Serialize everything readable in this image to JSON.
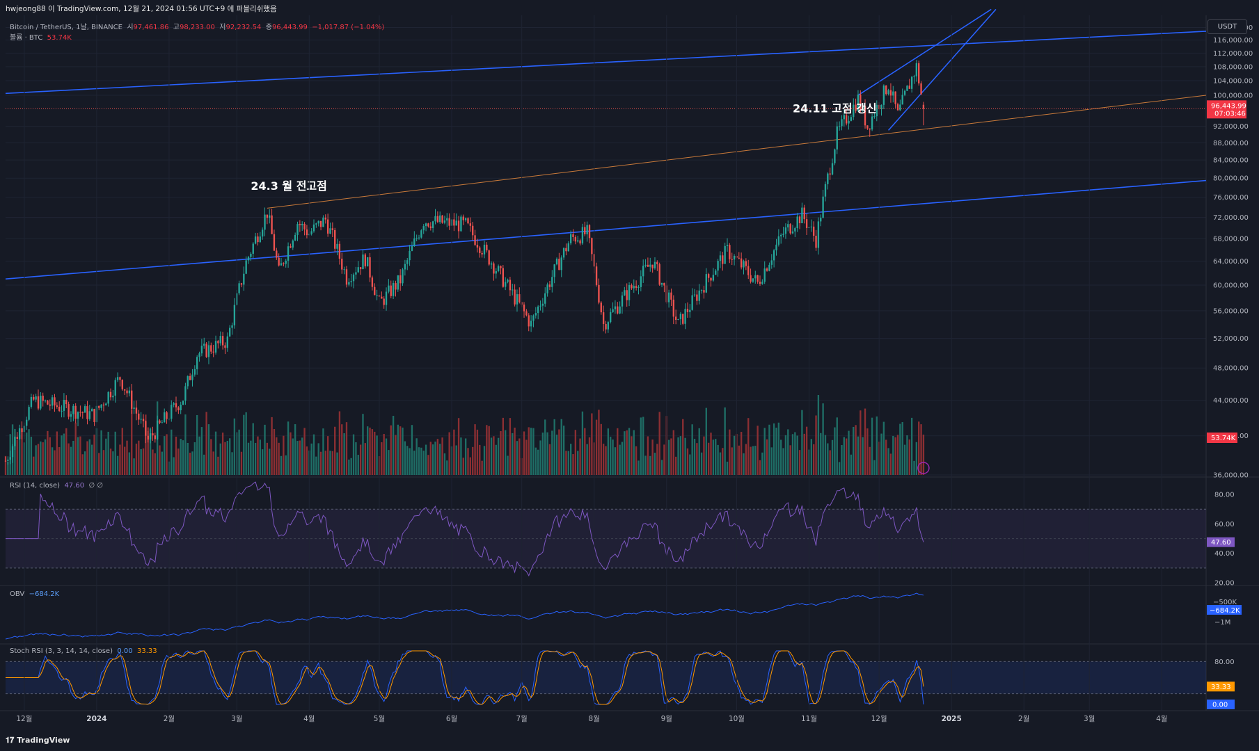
{
  "header": {
    "author": "hwjeong88",
    "text": "hwjeong88 이 TradingView.com, 12월 21, 2024 01:56 UTC+9 에 퍼블리쉬했음"
  },
  "symbol": {
    "name": "Bitcoin / TetherUS, 1날, BINANCE",
    "open_label": "시",
    "open": "97,461.86",
    "high_label": "고",
    "high": "98,233.00",
    "low_label": "저",
    "low": "92,232.54",
    "close_label": "종",
    "close": "96,443.99",
    "change": "−1,017.87 (−1.04%)",
    "volume_label": "볼륨 · BTC",
    "volume": "53.74K"
  },
  "currency": "USDT",
  "branding": "TradingView",
  "colors": {
    "background": "#161a25",
    "up": "#26a69a",
    "down": "#ef5350",
    "trend_blue": "#2962ff",
    "trend_orange": "#c97a3a",
    "rsi": "#7e57c2",
    "obv": "#2962ff",
    "stoch_k": "#2962ff",
    "stoch_d": "#ff9800"
  },
  "chart_data": [
    {
      "type": "candlestick",
      "pane": "price",
      "scale": "log",
      "ylim": [
        36000,
        124000
      ],
      "y_ticks": [
        "120,000.00",
        "116,000.00",
        "112,000.00",
        "108,000.00",
        "104,000.00",
        "100,000.00",
        "92,000.00",
        "88,000.00",
        "84,000.00",
        "80,000.00",
        "76,000.00",
        "72,000.00",
        "68,000.00",
        "64,000.00",
        "60,000.00",
        "56,000.00",
        "52,000.00",
        "48,000.00",
        "44,000.00",
        "40,000.00",
        "36,000.00"
      ],
      "x_ticks": [
        "12월",
        "2024",
        "2월",
        "3월",
        "4월",
        "5월",
        "6월",
        "7월",
        "8월",
        "9월",
        "10월",
        "11월",
        "12월",
        "2025",
        "2월",
        "3월",
        "4월"
      ],
      "x_range": [
        "2023-11-23",
        "2025-04-20"
      ],
      "last_date": "2024-12-20",
      "close_path": [
        [
          "2023-11-23",
          37400
        ],
        [
          "2023-12-05",
          44000
        ],
        [
          "2023-12-31",
          42300
        ],
        [
          "2024-01-11",
          46800
        ],
        [
          "2024-01-23",
          39500
        ],
        [
          "2024-02-07",
          44300
        ],
        [
          "2024-02-13",
          49800
        ],
        [
          "2024-02-26",
          51700
        ],
        [
          "2024-03-05",
          63800
        ],
        [
          "2024-03-14",
          73000
        ],
        [
          "2024-03-19",
          62000
        ],
        [
          "2024-03-27",
          71000
        ],
        [
          "2024-04-01",
          69000
        ],
        [
          "2024-04-08",
          71600
        ],
        [
          "2024-04-17",
          61200
        ],
        [
          "2024-04-25",
          64500
        ],
        [
          "2024-05-01",
          57000
        ],
        [
          "2024-05-10",
          60800
        ],
        [
          "2024-05-20",
          71400
        ],
        [
          "2024-06-07",
          70500
        ],
        [
          "2024-06-24",
          60300
        ],
        [
          "2024-07-05",
          54000
        ],
        [
          "2024-07-22",
          68000
        ],
        [
          "2024-07-29",
          69000
        ],
        [
          "2024-08-05",
          54000
        ],
        [
          "2024-08-20",
          61000
        ],
        [
          "2024-08-26",
          64000
        ],
        [
          "2024-09-06",
          53900
        ],
        [
          "2024-09-27",
          65800
        ],
        [
          "2024-10-10",
          60300
        ],
        [
          "2024-10-21",
          69000
        ],
        [
          "2024-10-29",
          72500
        ],
        [
          "2024-11-04",
          67800
        ],
        [
          "2024-11-13",
          90000
        ],
        [
          "2024-11-22",
          99000
        ],
        [
          "2024-11-26",
          91900
        ],
        [
          "2024-12-05",
          103000
        ],
        [
          "2024-12-09",
          94700
        ],
        [
          "2024-12-17",
          108000
        ],
        [
          "2024-12-20",
          96444
        ]
      ],
      "last_price": "96,443.99",
      "countdown": "07:03:46",
      "volume_last": "53.74K",
      "trendlines": [
        {
          "color": "blue",
          "from": [
            "2023-11-23",
            100500
          ],
          "to": [
            "2025-04-20",
            118800
          ]
        },
        {
          "color": "blue",
          "from": [
            "2023-11-23",
            61000
          ],
          "to": [
            "2025-04-20",
            79500
          ]
        },
        {
          "color": "orange",
          "from": [
            "2024-03-14",
            73800
          ],
          "to": [
            "2025-04-20",
            100000
          ]
        },
        {
          "color": "blue",
          "from": [
            "2024-11-22",
            100000
          ],
          "to": [
            "2025-01-18",
            126000
          ]
        },
        {
          "color": "blue",
          "from": [
            "2024-12-05",
            91000
          ],
          "to": [
            "2025-01-20",
            126000
          ]
        }
      ],
      "annotations": [
        {
          "text": "24.3 월 전고점",
          "at": [
            "2024-03-07",
            77500
          ]
        },
        {
          "text": "24.11 고점 갱신",
          "at": [
            "2024-10-25",
            95500
          ]
        }
      ]
    },
    {
      "type": "line",
      "pane": "rsi",
      "title": "RSI (14, close)",
      "value": "47.60",
      "extra": "∅ ∅",
      "ylim": [
        20,
        90
      ],
      "bands": [
        30,
        70
      ],
      "y_ticks": [
        "80.00",
        "60.00",
        "40.00",
        "20.00"
      ]
    },
    {
      "type": "line",
      "pane": "obv",
      "title": "OBV",
      "value": "−684.2K",
      "y_ticks": [
        "−500K",
        "−1M"
      ]
    },
    {
      "type": "line",
      "pane": "stoch",
      "title": "Stoch RSI (3, 3, 14, 14, close)",
      "k_value": "0.00",
      "d_value": "33.33",
      "ylim": [
        0,
        100
      ],
      "bands": [
        20,
        80
      ],
      "y_ticks": [
        "80.00"
      ]
    }
  ]
}
